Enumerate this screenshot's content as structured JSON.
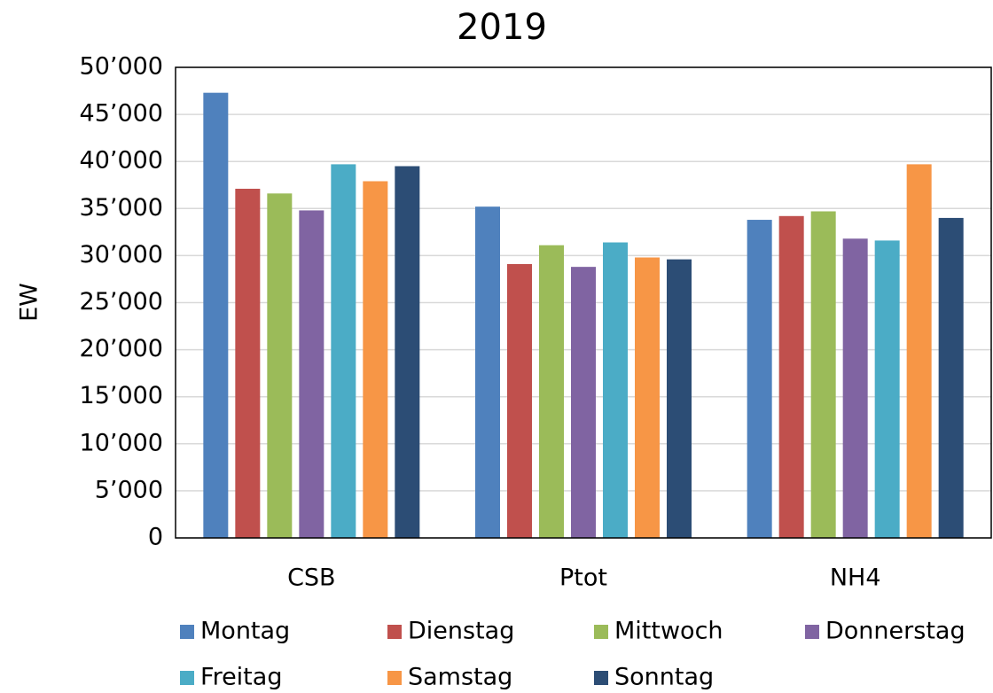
{
  "chart_data": {
    "type": "bar",
    "title": "2019",
    "y_label": "EW",
    "categories": [
      "CSB",
      "Ptot",
      "NH4"
    ],
    "series": [
      {
        "name": "Montag",
        "color": "#4f81bd",
        "values": [
          47300,
          35200,
          33800
        ]
      },
      {
        "name": "Dienstag",
        "color": "#c0504d",
        "values": [
          37100,
          29100,
          34200
        ]
      },
      {
        "name": "Mittwoch",
        "color": "#9bbb59",
        "values": [
          36600,
          31100,
          34700
        ]
      },
      {
        "name": "Donnerstag",
        "color": "#8064a2",
        "values": [
          34800,
          28800,
          31800
        ]
      },
      {
        "name": "Freitag",
        "color": "#4bacc6",
        "values": [
          39700,
          31400,
          31600
        ]
      },
      {
        "name": "Samstag",
        "color": "#f79646",
        "values": [
          37900,
          29800,
          39700
        ]
      },
      {
        "name": "Sonntag",
        "color": "#2c4d75",
        "values": [
          39500,
          29600,
          34000
        ]
      }
    ],
    "ylim": [
      0,
      50000
    ],
    "yticks": [
      0,
      {
        "value": 5000,
        "label": "5’000"
      },
      {
        "value": 10000,
        "label": "10’000"
      },
      {
        "value": 15000,
        "label": "15’000"
      },
      {
        "value": 20000,
        "label": "20’000"
      },
      {
        "value": 25000,
        "label": "25’000"
      },
      {
        "value": 30000,
        "label": "30’000"
      },
      {
        "value": 35000,
        "label": "35’000"
      },
      {
        "value": 40000,
        "label": "40’000"
      },
      {
        "value": 45000,
        "label": "45’000"
      },
      {
        "value": 50000,
        "label": "50’000"
      }
    ],
    "grid": true
  }
}
